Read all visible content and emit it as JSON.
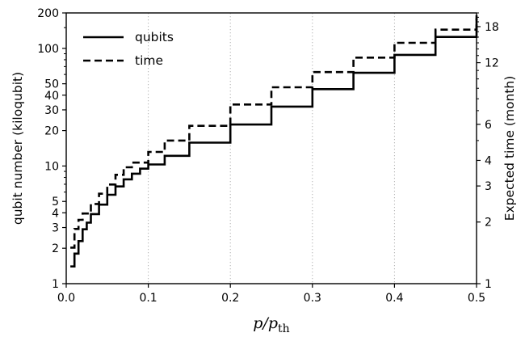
{
  "chart_data": {
    "type": "line",
    "xlabel": "p/p",
    "xlabel_sub": "th",
    "ylabel_left": "qubit number (kiloqubit)",
    "ylabel_right": "Expected time (month)",
    "xlim": [
      0.0,
      0.5
    ],
    "ylim_left": [
      1,
      200
    ],
    "ylim_right": [
      1,
      21
    ],
    "yscale": "log",
    "x_ticks": [
      "0.0",
      "0.1",
      "0.2",
      "0.3",
      "0.4",
      "0.5"
    ],
    "x_tick_values": [
      0.0,
      0.1,
      0.2,
      0.3,
      0.4,
      0.5
    ],
    "y_left_ticks": [
      "1",
      "2",
      "3",
      "4",
      "5",
      "10",
      "20",
      "30",
      "40",
      "50",
      "100",
      "200"
    ],
    "y_left_tick_values": [
      1,
      2,
      3,
      4,
      5,
      10,
      20,
      30,
      40,
      50,
      100,
      200
    ],
    "y_right_ticks": [
      "1",
      "2",
      "3",
      "4",
      "6",
      "12",
      "18"
    ],
    "y_right_tick_values": [
      1,
      2,
      3,
      4,
      6,
      12,
      18
    ],
    "grid": "x-dotted",
    "legend_position": "top-left",
    "series": [
      {
        "name": "qubits",
        "style": "solid",
        "axis": "left",
        "color": "#000000",
        "x": [
          0.005,
          0.01,
          0.015,
          0.02,
          0.025,
          0.03,
          0.04,
          0.05,
          0.06,
          0.07,
          0.08,
          0.09,
          0.1,
          0.12,
          0.15,
          0.2,
          0.25,
          0.3,
          0.35,
          0.4,
          0.45,
          0.5
        ],
        "y": [
          1.4,
          1.8,
          2.3,
          2.9,
          3.3,
          3.9,
          4.7,
          5.7,
          6.7,
          7.7,
          8.6,
          9.5,
          10.3,
          12.2,
          15.8,
          22.5,
          32,
          45,
          62,
          88,
          125,
          180
        ]
      },
      {
        "name": "time",
        "style": "dashed",
        "axis": "right",
        "color": "#000000",
        "x": [
          0.005,
          0.01,
          0.015,
          0.02,
          0.03,
          0.04,
          0.05,
          0.06,
          0.07,
          0.08,
          0.1,
          0.12,
          0.15,
          0.2,
          0.25,
          0.3,
          0.35,
          0.4,
          0.45,
          0.5
        ],
        "y": [
          1.5,
          1.85,
          2.05,
          2.2,
          2.45,
          2.75,
          3.05,
          3.4,
          3.7,
          3.9,
          4.4,
          5.0,
          5.9,
          7.5,
          9.1,
          10.8,
          12.7,
          15.0,
          17.4,
          20.5
        ]
      }
    ]
  }
}
